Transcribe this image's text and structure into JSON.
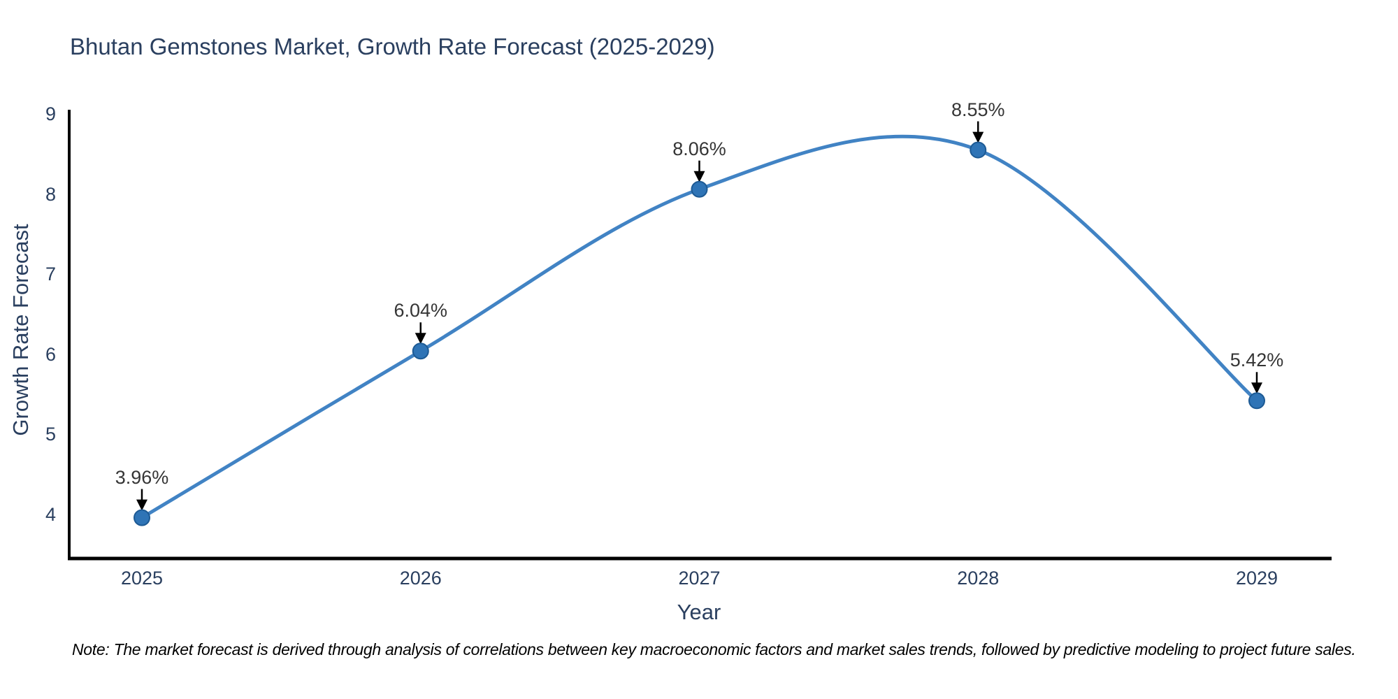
{
  "title": "Bhutan Gemstones Market, Growth Rate Forecast (2025-2029)",
  "note": "Note: The market forecast is derived through analysis of correlations between key macroeconomic factors and market sales trends, followed by predictive modeling to project future sales.",
  "chart_data": {
    "type": "line",
    "line_shape": "spline",
    "title": "Bhutan Gemstones Market, Growth Rate Forecast (2025-2029)",
    "xlabel": "Year",
    "ylabel": "Growth Rate Forecast",
    "x": [
      2025,
      2026,
      2027,
      2028,
      2029
    ],
    "series": [
      {
        "name": "Growth Rate Forecast",
        "values": [
          3.96,
          6.04,
          8.06,
          8.55,
          5.42
        ]
      }
    ],
    "point_labels": [
      "3.96%",
      "6.04%",
      "8.06%",
      "8.55%",
      "5.42%"
    ],
    "xticks": [
      2025,
      2026,
      2027,
      2028,
      2029
    ],
    "yticks": [
      4,
      5,
      6,
      7,
      8,
      9
    ],
    "xlim": [
      2024.74,
      2029.27
    ],
    "ylim": [
      3.44,
      9.0
    ],
    "grid": false,
    "legend": "none",
    "marker_style": "circle",
    "annotation_style": "label-with-down-arrow",
    "colors": {
      "line": "#4183c4",
      "marker": "#2f74b6",
      "marker_edge": "#1d5a94",
      "spine": "#000000",
      "axis_text": "#2a3f5f",
      "annotation_text": "#353535",
      "annotation_arrow": "#000000",
      "background": "#ffffff"
    }
  }
}
